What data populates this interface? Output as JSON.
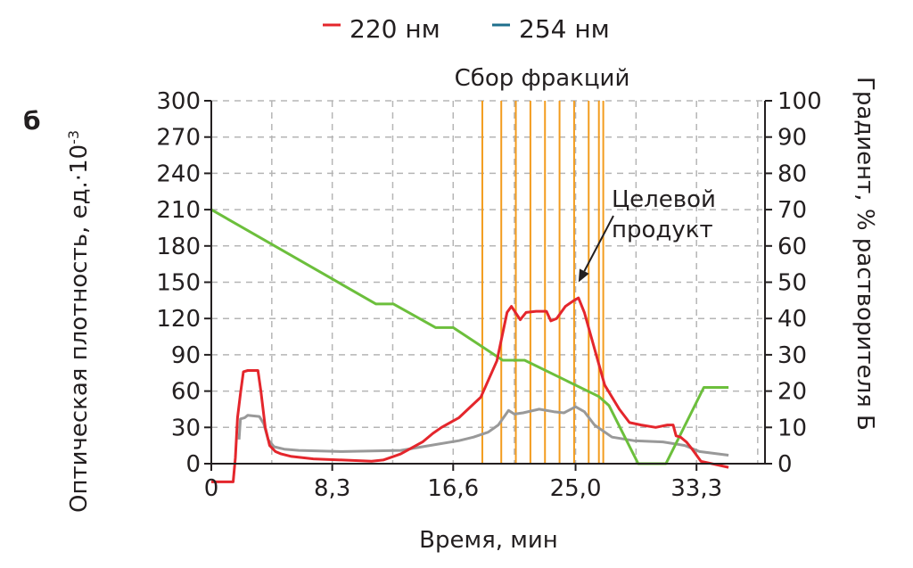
{
  "chart_data": {
    "type": "line",
    "panel_label": "б",
    "xlabel": "Время, мин",
    "ylabel_left": "Оптическая плотность, ед.·10",
    "ylabel_left_sup": "-3",
    "ylabel_right": "Градиент, % растворителя Б",
    "xlim": [
      0,
      38
    ],
    "ylim_left": [
      0,
      300
    ],
    "ylim_right": [
      0,
      100
    ],
    "x_ticks": [
      0,
      8.3,
      16.6,
      25.0,
      33.3
    ],
    "x_tick_labels": [
      "0",
      "8,3",
      "16,6",
      "25,0",
      "33,3"
    ],
    "x_grid": [
      0,
      4.15,
      8.3,
      12.45,
      16.6,
      20.8,
      25.0,
      29.15,
      33.3,
      37.5
    ],
    "y_left_ticks": [
      0,
      30,
      60,
      90,
      120,
      150,
      180,
      210,
      240,
      270,
      300
    ],
    "y_left_tick_labels": [
      "0",
      "30",
      "60",
      "90",
      "120",
      "150",
      "180",
      "210",
      "240",
      "270",
      "300"
    ],
    "y_right_ticks": [
      0,
      10,
      20,
      30,
      40,
      50,
      60,
      70,
      80,
      90,
      100
    ],
    "y_right_tick_labels": [
      "0",
      "10",
      "20",
      "30",
      "40",
      "50",
      "60",
      "70",
      "80",
      "90",
      "100"
    ],
    "grid": true,
    "legend": {
      "placement": "top-center",
      "entries": [
        "220 нм",
        "254 нм"
      ]
    },
    "colors": {
      "s220": "#e4262c",
      "s254": "#1e6f8c",
      "gray": "#999999",
      "gradient": "#6cbf3c",
      "fractions": "#f39c1e"
    },
    "annotations": {
      "fractions_label": "Сбор фракций",
      "target_label_line1": "Целевой",
      "target_label_line2": "продукт",
      "target_arrow_tip": [
        25.2,
        150
      ]
    },
    "fraction_lines": [
      18.6,
      19.9,
      20.9,
      21.9,
      22.9,
      23.9,
      24.9,
      25.9,
      26.6,
      26.9
    ],
    "series": [
      {
        "name": "220 нм",
        "color": "#e4262c",
        "axis": "left",
        "x": [
          0,
          1.5,
          1.65,
          1.8,
          2.0,
          2.2,
          2.5,
          3.2,
          3.4,
          3.7,
          4.0,
          4.4,
          4.8,
          5.5,
          7,
          9,
          11,
          11.8,
          13,
          14.5,
          15.2,
          15.8,
          17,
          18.5,
          19.6,
          20.3,
          20.6,
          21.2,
          21.6,
          22.3,
          23.0,
          23.3,
          23.7,
          24.3,
          24.9,
          25.2,
          25.6,
          26.3,
          27,
          28,
          28.7,
          29.5,
          30.5,
          31.3,
          31.7,
          31.9,
          32.2,
          32.6,
          33,
          33.6,
          35.5
        ],
        "y": [
          -15,
          -15,
          5,
          38,
          58,
          76,
          77,
          77,
          60,
          30,
          15,
          10,
          8,
          6,
          4,
          3,
          2,
          3,
          8,
          18,
          25,
          30,
          38,
          55,
          85,
          125,
          130,
          119,
          125,
          126,
          126,
          118,
          120,
          130,
          135,
          137,
          125,
          95,
          65,
          45,
          34,
          32,
          30,
          32,
          32,
          23,
          22,
          18,
          12,
          2,
          -3
        ]
      },
      {
        "name": "254 нм",
        "color": "#1e6f8c",
        "axis": "left",
        "x": [],
        "y": []
      },
      {
        "name": "",
        "color": "#999999",
        "axis": "left",
        "x": [
          1.9,
          2.0,
          2.3,
          2.5,
          3.3,
          3.6,
          3.9,
          4.3,
          5,
          6,
          9,
          13,
          15,
          17,
          18,
          19,
          19.7,
          20.4,
          20.8,
          21.4,
          22.5,
          23.5,
          24.2,
          25.0,
          25.6,
          26.3,
          27.5,
          29,
          31,
          32.5,
          33.5,
          35.5
        ],
        "y": [
          20,
          37,
          38,
          40,
          39,
          33,
          20,
          14,
          12,
          11,
          10,
          11,
          15,
          19,
          22,
          26,
          32,
          44,
          41,
          42,
          45,
          43,
          42,
          47,
          43,
          32,
          22,
          19,
          18,
          15,
          10,
          7
        ]
      },
      {
        "name": "",
        "color": "#6cbf3c",
        "axis": "right",
        "x": [
          0,
          11.3,
          12.5,
          15.4,
          16.6,
          20.0,
          21.5,
          26.6,
          27.3,
          29.3,
          31.2,
          33.8,
          35.5
        ],
        "y": [
          70,
          44,
          44,
          37.5,
          37.5,
          28.5,
          28.5,
          18.5,
          16,
          0,
          0,
          21,
          21
        ]
      }
    ]
  }
}
